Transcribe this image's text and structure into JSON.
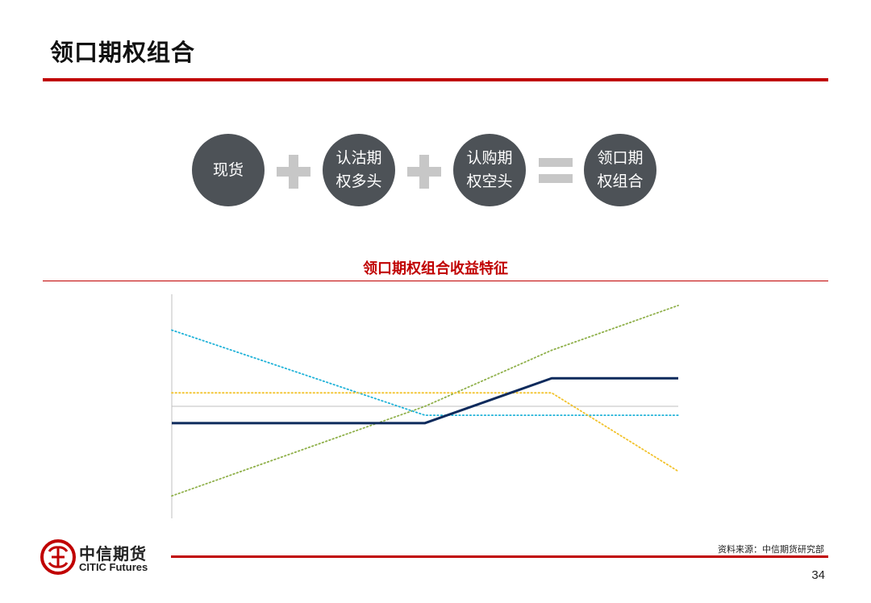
{
  "page": {
    "title": "领口期权组合",
    "page_number": "34",
    "source": "资料来源：中信期货研究部"
  },
  "formula": {
    "items": [
      "现货",
      "认沽期\n权多头",
      "认购期\n权空头",
      "领口期\n权组合"
    ],
    "operators": [
      "plus-icon",
      "plus-icon",
      "equals-icon"
    ]
  },
  "chart": {
    "title": "领口期权组合收益特征"
  },
  "logo": {
    "cn": "中信期货",
    "en": "CITIC Futures"
  },
  "colors": {
    "accent": "#c00000",
    "circle": "#4d5257",
    "operator": "#c7c7c7",
    "collar": "#0d2a5c",
    "spot": "#8fb04a",
    "put": "#1fb2d8",
    "call": "#f2c22a",
    "axis": "#bfbfbf"
  },
  "chart_data": {
    "type": "line",
    "title": "领口期权组合收益特征",
    "xlabel": "",
    "ylabel": "",
    "x": [
      0,
      25,
      37.5,
      50
    ],
    "series": [
      {
        "values": [
          -0.75,
          -0.75,
          1.25,
          1.25
        ],
        "style": "solid"
      },
      {
        "values": [
          -4.0,
          0.0,
          2.5,
          4.5
        ],
        "style": "dotted"
      },
      {
        "values": [
          3.4,
          -0.4,
          -0.4,
          -0.4
        ],
        "style": "dotted"
      },
      {
        "values": [
          0.6,
          0.6,
          0.6,
          -2.9
        ],
        "style": "dotted"
      }
    ],
    "xlim": [
      0,
      50
    ],
    "ylim": [
      -5.0,
      5.0
    ],
    "zero_line": true,
    "grid": false,
    "legend": "none"
  }
}
